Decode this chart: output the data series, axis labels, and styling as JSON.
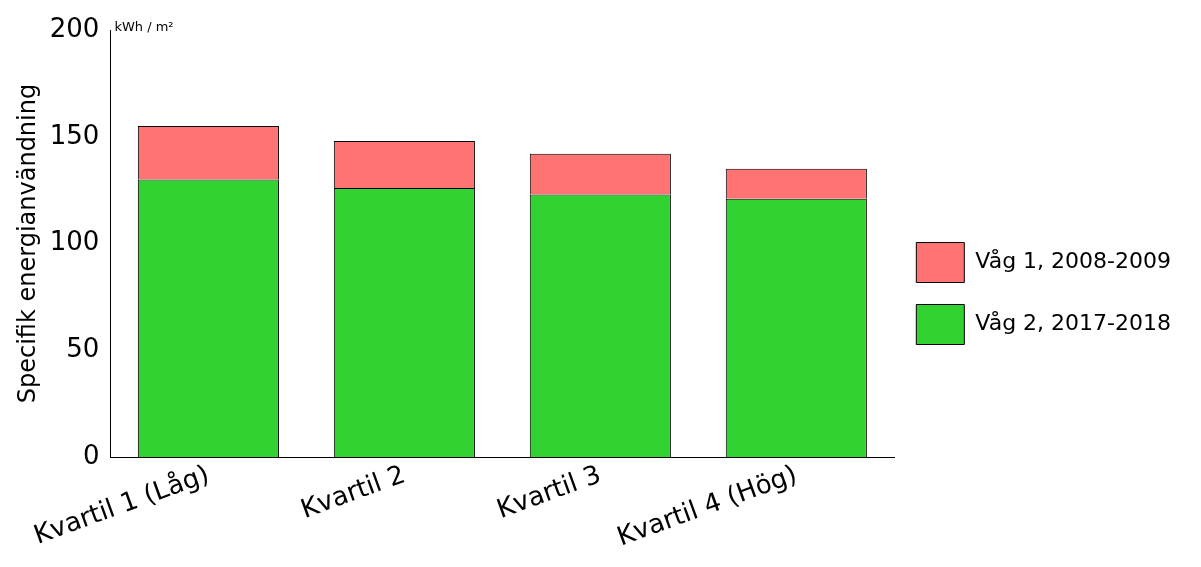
{
  "chart_data": {
    "type": "bar",
    "stacked": true,
    "ylabel": "Specifik energianvändning",
    "annotations": [
      "kWh / m²"
    ],
    "categories": [
      "Kvartil 1 (Låg)",
      "Kvartil 2",
      "Kvartil 3",
      "Kvartil 4 (Hög)"
    ],
    "series": [
      {
        "name": "Våg 2, 2017-2018",
        "color": "#33d233",
        "values": [
          130,
          126,
          123,
          121
        ]
      },
      {
        "name": "Våg 1, 2008-2009",
        "color": "#ff7373",
        "values": [
          25,
          22,
          19,
          14
        ]
      }
    ],
    "ylim": [
      0,
      200
    ],
    "yticks": [
      0,
      50,
      100,
      150,
      200
    ],
    "grid": false,
    "legend": "right"
  }
}
